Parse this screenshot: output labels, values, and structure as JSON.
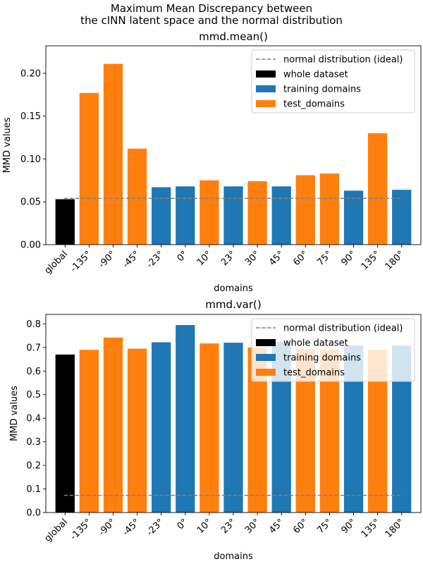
{
  "figure": {
    "suptitle_lines": [
      "Maximum Mean Discrepancy between",
      "the cINN latent space and the normal distribution"
    ]
  },
  "colors": {
    "whole": "#000000",
    "training": "#1f77b4",
    "test": "#ff7f0e",
    "ideal": "#808080"
  },
  "chart_data": [
    {
      "type": "bar",
      "title": "mmd.mean()",
      "xlabel": "domains",
      "ylabel": "MMD values",
      "categories": [
        "global",
        "-135°",
        "-90°",
        "-45°",
        "-23°",
        "0°",
        "10°",
        "23°",
        "30°",
        "45°",
        "60°",
        "75°",
        "90°",
        "135°",
        "180°"
      ],
      "values": [
        0.053,
        0.177,
        0.211,
        0.112,
        0.067,
        0.068,
        0.075,
        0.068,
        0.074,
        0.068,
        0.081,
        0.083,
        0.063,
        0.13,
        0.064
      ],
      "groups": [
        "whole",
        "test",
        "test",
        "test",
        "training",
        "training",
        "test",
        "training",
        "test",
        "training",
        "test",
        "test",
        "training",
        "test",
        "training"
      ],
      "reference_line": {
        "label": "normal distribution (ideal)",
        "value": 0.054
      },
      "ylim": [
        0,
        0.232
      ],
      "yticks": [
        0.0,
        0.05,
        0.1,
        0.15,
        0.2
      ],
      "ytick_labels": [
        "0.00",
        "0.05",
        "0.10",
        "0.15",
        "0.20"
      ],
      "legend": {
        "placement": "top-right",
        "entries": [
          "normal distribution (ideal)",
          "whole dataset",
          "training domains",
          "test_domains"
        ]
      },
      "grid": false
    },
    {
      "type": "bar",
      "title": "mmd.var()",
      "xlabel": "domains",
      "ylabel": "MMD values",
      "categories": [
        "global",
        "-135°",
        "-90°",
        "-45°",
        "-23°",
        "0°",
        "10°",
        "23°",
        "30°",
        "45°",
        "60°",
        "75°",
        "90°",
        "135°",
        "180°"
      ],
      "values": [
        0.67,
        0.69,
        0.742,
        0.695,
        0.722,
        0.795,
        0.717,
        0.72,
        0.7,
        0.723,
        0.693,
        0.69,
        0.708,
        0.69,
        0.708
      ],
      "groups": [
        "whole",
        "test",
        "test",
        "test",
        "training",
        "training",
        "test",
        "training",
        "test",
        "training",
        "test",
        "test",
        "training",
        "test",
        "training"
      ],
      "reference_line": {
        "label": "normal distribution (ideal)",
        "value": 0.073
      },
      "ylim": [
        0,
        0.84
      ],
      "yticks": [
        0.0,
        0.1,
        0.2,
        0.3,
        0.4,
        0.5,
        0.6,
        0.7,
        0.8
      ],
      "ytick_labels": [
        "0.0",
        "0.1",
        "0.2",
        "0.3",
        "0.4",
        "0.5",
        "0.6",
        "0.7",
        "0.8"
      ],
      "legend": {
        "placement": "top-right",
        "entries": [
          "normal distribution (ideal)",
          "whole dataset",
          "training domains",
          "test_domains"
        ]
      },
      "grid": false
    }
  ]
}
